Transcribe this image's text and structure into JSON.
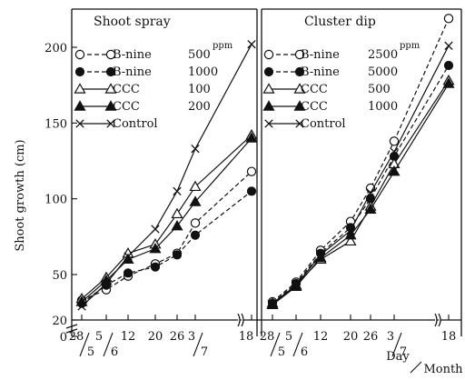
{
  "chart_data": {
    "type": "line",
    "ylabel": "Shoot growth (cm)",
    "xlabel_day": "Day",
    "xlabel_month": "Month",
    "yticks": [
      20,
      50,
      100,
      150,
      200
    ],
    "y_zero_label": "0",
    "ylim": [
      20,
      215
    ],
    "x_tick_labels": [
      "28",
      "5",
      "5",
      "6",
      "12",
      "20",
      "26",
      "3",
      "7",
      "18"
    ],
    "x_day_labels": [
      "28",
      "5",
      "12",
      "20",
      "26",
      "3",
      "18"
    ],
    "x_month_labels": [
      "5",
      "6",
      "7"
    ],
    "panels": [
      {
        "title": "Shoot spray",
        "legend_unit": "ppm",
        "series": [
          {
            "name": "B-nine",
            "dose": "500",
            "marker": "open-circle",
            "dash": true,
            "values": [
              33,
              40,
              49,
              57,
              64,
              84,
              118
            ]
          },
          {
            "name": "B-nine",
            "dose": "1000",
            "marker": "filled-circle",
            "dash": true,
            "values": [
              31,
              43,
              51,
              55,
              63,
              76,
              105
            ]
          },
          {
            "name": "CCC",
            "dose": "100",
            "marker": "open-triangle",
            "dash": false,
            "values": [
              34,
              48,
              64,
              70,
              90,
              108,
              142
            ]
          },
          {
            "name": "CCC",
            "dose": "200",
            "marker": "filled-triangle",
            "dash": false,
            "values": [
              32,
              46,
              60,
              67,
              82,
              98,
              140
            ]
          },
          {
            "name": "Control",
            "dose": "",
            "marker": "cross",
            "dash": false,
            "values": [
              29,
              44,
              62,
              80,
              105,
              133,
              202
            ]
          }
        ]
      },
      {
        "title": "Cluster dip",
        "legend_unit": "ppm",
        "series": [
          {
            "name": "B-nine",
            "dose": "2500",
            "marker": "open-circle",
            "dash": true,
            "values": [
              32,
              45,
              66,
              85,
              107,
              138,
              219
            ]
          },
          {
            "name": "B-nine",
            "dose": "5000",
            "marker": "filled-circle",
            "dash": true,
            "values": [
              31,
              44,
              64,
              81,
              100,
              128,
              188
            ]
          },
          {
            "name": "CCC",
            "dose": "500",
            "marker": "open-triangle",
            "dash": false,
            "values": [
              31,
              43,
              60,
              72,
              95,
              123,
              178
            ]
          },
          {
            "name": "CCC",
            "dose": "1000",
            "marker": "filled-triangle",
            "dash": false,
            "values": [
              30,
              42,
              61,
              76,
              93,
              118,
              176
            ]
          },
          {
            "name": "Control",
            "dose": "",
            "marker": "cross",
            "dash": false,
            "values": [
              30,
              43,
              63,
              79,
              104,
              131,
              201
            ]
          }
        ]
      }
    ]
  }
}
